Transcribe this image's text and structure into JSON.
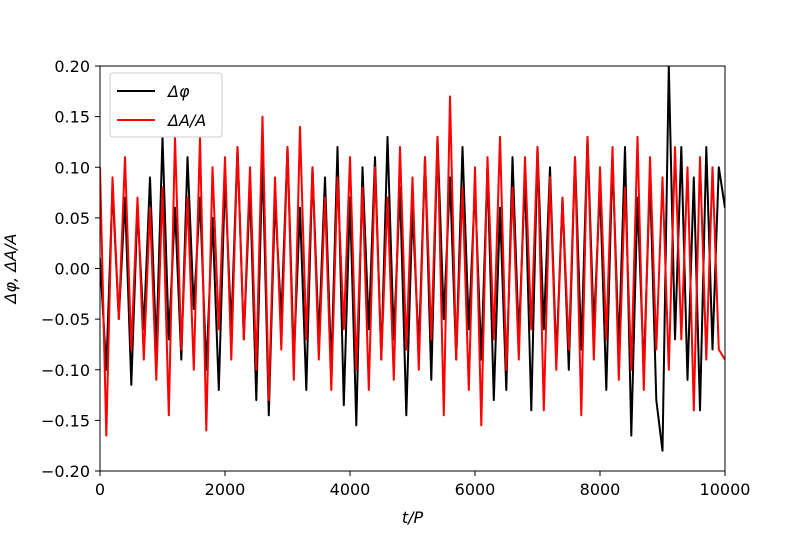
{
  "chart_data": {
    "type": "line",
    "title": "",
    "xlabel": "t/P",
    "ylabel": "Δφ, ΔA/A",
    "xlim": [
      0,
      10000
    ],
    "ylim": [
      -0.2,
      0.2
    ],
    "xticks": [
      0,
      2000,
      4000,
      6000,
      8000,
      10000
    ],
    "xtick_labels": [
      "0",
      "2000",
      "4000",
      "6000",
      "8000",
      "10000"
    ],
    "yticks": [
      -0.2,
      -0.15,
      -0.1,
      -0.05,
      0.0,
      0.05,
      0.1,
      0.15,
      0.2
    ],
    "ytick_labels": [
      "−0.20",
      "−0.15",
      "−0.10",
      "−0.05",
      "0.00",
      "0.05",
      "0.10",
      "0.15",
      "0.20"
    ],
    "grid": false,
    "legend": {
      "position": "top-left"
    },
    "series": [
      {
        "name": "Δφ",
        "color": "#000000",
        "x": [
          0,
          100,
          200,
          300,
          400,
          500,
          600,
          700,
          800,
          900,
          1000,
          1100,
          1200,
          1300,
          1400,
          1500,
          1600,
          1700,
          1800,
          1900,
          2000,
          2100,
          2200,
          2300,
          2400,
          2500,
          2600,
          2700,
          2800,
          2900,
          3000,
          3100,
          3200,
          3300,
          3400,
          3500,
          3600,
          3700,
          3800,
          3900,
          4000,
          4100,
          4200,
          4300,
          4400,
          4500,
          4600,
          4700,
          4800,
          4900,
          5000,
          5100,
          5200,
          5300,
          5400,
          5500,
          5600,
          5700,
          5800,
          5900,
          6000,
          6100,
          6200,
          6300,
          6400,
          6500,
          6600,
          6700,
          6800,
          6900,
          7000,
          7100,
          7200,
          7300,
          7400,
          7500,
          7600,
          7700,
          7800,
          7900,
          8000,
          8100,
          8200,
          8300,
          8400,
          8500,
          8600,
          8700,
          8800,
          8900,
          9000,
          9100,
          9200,
          9300,
          9400,
          9500,
          9600,
          9700,
          9800,
          9900,
          10000
        ],
        "values": [
          0.01,
          -0.1,
          0.08,
          -0.05,
          0.07,
          -0.115,
          0.06,
          -0.06,
          0.09,
          -0.08,
          0.13,
          -0.07,
          0.06,
          -0.09,
          0.11,
          -0.04,
          0.07,
          -0.1,
          0.05,
          -0.12,
          0.09,
          -0.06,
          0.12,
          -0.07,
          0.08,
          -0.13,
          0.11,
          -0.145,
          0.07,
          -0.05,
          0.12,
          -0.09,
          0.06,
          -0.12,
          0.1,
          -0.07,
          0.09,
          -0.1,
          0.12,
          -0.135,
          0.07,
          -0.155,
          0.1,
          -0.06,
          0.11,
          -0.09,
          0.13,
          -0.07,
          0.08,
          -0.145,
          0.06,
          -0.08,
          0.11,
          -0.11,
          0.13,
          -0.05,
          0.09,
          -0.09,
          0.12,
          -0.06,
          0.08,
          -0.09,
          0.1,
          -0.13,
          0.06,
          -0.12,
          0.11,
          -0.07,
          0.09,
          -0.14,
          0.12,
          -0.06,
          0.1,
          -0.09,
          0.07,
          -0.1,
          0.11,
          -0.08,
          0.13,
          -0.06,
          0.08,
          -0.12,
          0.11,
          -0.08,
          0.12,
          -0.165,
          0.07,
          -0.1,
          0.09,
          -0.13,
          -0.18,
          0.2,
          -0.07,
          0.12,
          -0.11,
          0.09,
          -0.14,
          0.12,
          -0.08,
          0.1,
          0.06
        ]
      },
      {
        "name": "ΔA/A",
        "color": "#ff0000",
        "x": [
          0,
          100,
          200,
          300,
          400,
          500,
          600,
          700,
          800,
          900,
          1000,
          1100,
          1200,
          1300,
          1400,
          1500,
          1600,
          1700,
          1800,
          1900,
          2000,
          2100,
          2200,
          2300,
          2400,
          2500,
          2600,
          2700,
          2800,
          2900,
          3000,
          3100,
          3200,
          3300,
          3400,
          3500,
          3600,
          3700,
          3800,
          3900,
          4000,
          4100,
          4200,
          4300,
          4400,
          4500,
          4600,
          4700,
          4800,
          4900,
          5000,
          5100,
          5200,
          5300,
          5400,
          5500,
          5600,
          5700,
          5800,
          5900,
          6000,
          6100,
          6200,
          6300,
          6400,
          6500,
          6600,
          6700,
          6800,
          6900,
          7000,
          7100,
          7200,
          7300,
          7400,
          7500,
          7600,
          7700,
          7800,
          7900,
          8000,
          8100,
          8200,
          8300,
          8400,
          8500,
          8600,
          8700,
          8800,
          8900,
          9000,
          9100,
          9200,
          9300,
          9400,
          9500,
          9600,
          9700,
          9800,
          9900,
          10000
        ],
        "values": [
          0.1,
          -0.165,
          0.09,
          -0.05,
          0.11,
          -0.08,
          0.07,
          -0.09,
          0.06,
          -0.11,
          0.08,
          -0.145,
          0.13,
          -0.08,
          0.07,
          -0.1,
          0.13,
          -0.16,
          0.1,
          -0.06,
          0.11,
          -0.09,
          0.12,
          -0.07,
          0.1,
          -0.1,
          0.15,
          -0.13,
          0.09,
          -0.08,
          0.12,
          -0.11,
          0.14,
          -0.07,
          0.1,
          -0.09,
          0.07,
          -0.12,
          0.09,
          -0.06,
          0.11,
          -0.1,
          0.08,
          -0.12,
          0.1,
          -0.09,
          0.07,
          -0.11,
          0.12,
          -0.08,
          0.09,
          -0.1,
          0.11,
          -0.07,
          0.13,
          -0.145,
          0.17,
          -0.09,
          0.08,
          -0.12,
          0.1,
          -0.155,
          0.11,
          -0.07,
          0.13,
          -0.1,
          0.08,
          -0.09,
          0.11,
          -0.06,
          0.12,
          -0.14,
          0.09,
          -0.1,
          0.07,
          -0.08,
          0.11,
          -0.145,
          0.13,
          -0.09,
          0.1,
          -0.07,
          0.12,
          -0.11,
          0.08,
          -0.1,
          0.13,
          -0.12,
          0.11,
          -0.08,
          0.09,
          -0.1,
          0.12,
          -0.07,
          0.1,
          -0.14,
          0.11,
          -0.09,
          0.1,
          -0.08,
          -0.09
        ]
      }
    ]
  }
}
